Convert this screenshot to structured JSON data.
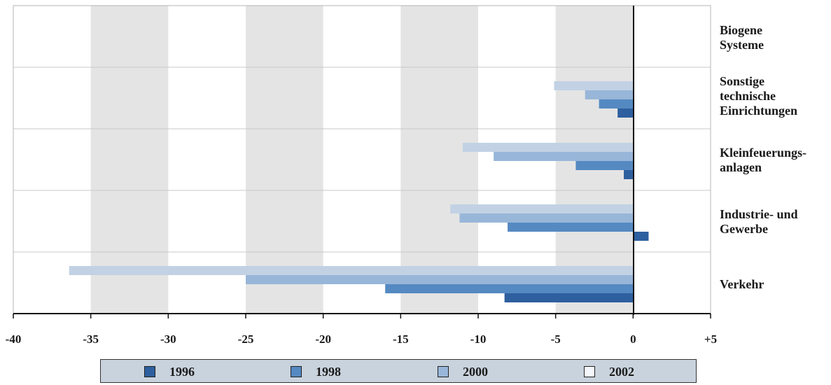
{
  "chart_data": {
    "type": "bar",
    "orientation": "horizontal",
    "categories": [
      "Biogene\nSysteme",
      "Sonstige\ntechnische\nEinrichtungen",
      "Kleinfeuerungs-\nanlagen",
      "Industrie- und\nGewerbe",
      "Verkehr"
    ],
    "series": [
      {
        "name": "1996",
        "color": "#2e5f9e",
        "values": [
          0,
          -1.0,
          -0.6,
          1.0,
          -8.3
        ]
      },
      {
        "name": "1998",
        "color": "#5589c2",
        "values": [
          0,
          -2.2,
          -3.7,
          -8.1,
          -16.0
        ]
      },
      {
        "name": "2000",
        "color": "#98b6d8",
        "values": [
          0,
          -3.1,
          -9.0,
          -11.2,
          -25.0
        ]
      },
      {
        "name": "2002",
        "color": "#c2d2e4",
        "values": [
          0,
          -5.1,
          -11.0,
          -11.8,
          -36.4
        ]
      }
    ],
    "xlim": [
      -40,
      5
    ],
    "xticks": [
      -40,
      -35,
      -30,
      -25,
      -20,
      -15,
      -10,
      -5,
      0,
      5
    ],
    "xtick_labels": [
      "-40",
      "-35",
      "-30",
      "-25",
      "-20",
      "-15",
      "-10",
      "-5",
      "0",
      "+5"
    ],
    "grid": "alternating vertical bands",
    "legend_placement": "bottom",
    "title": "",
    "xlabel": "",
    "ylabel": ""
  }
}
